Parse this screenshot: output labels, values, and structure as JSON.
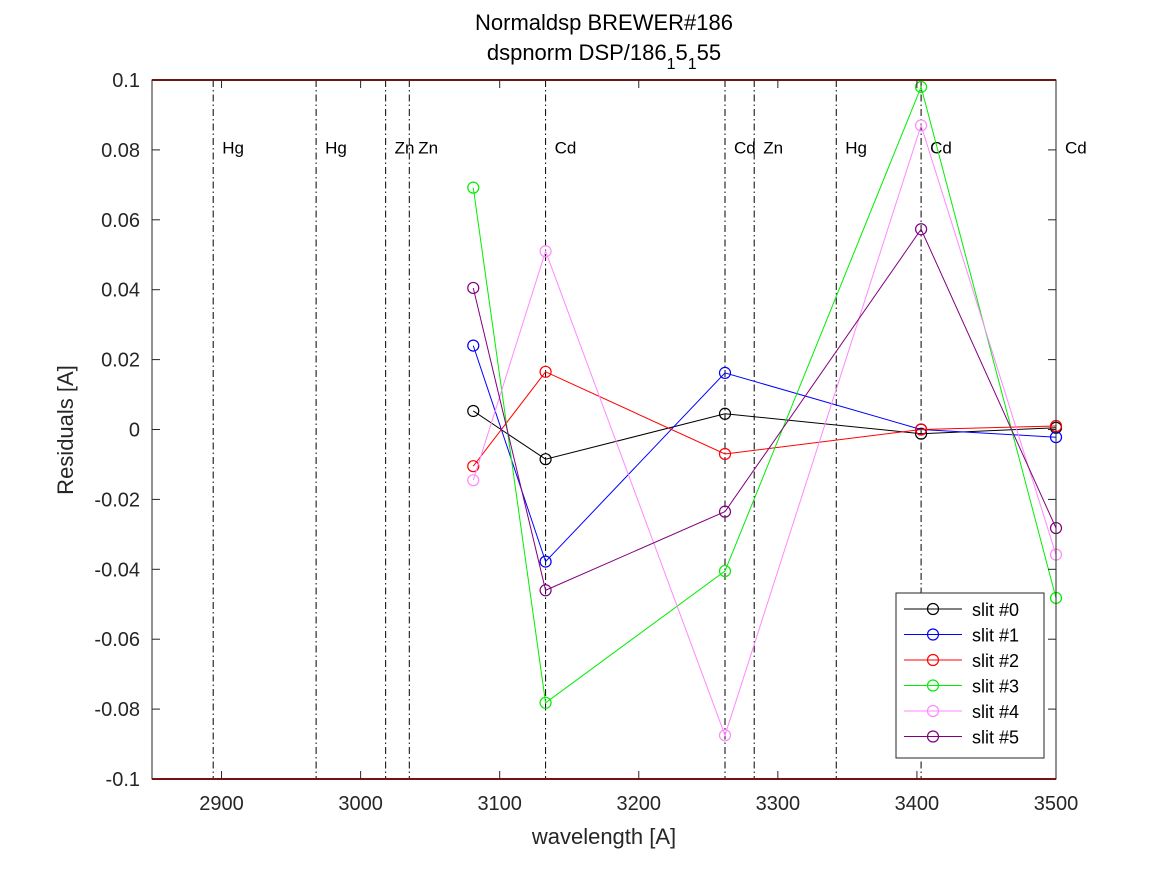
{
  "chart_data": {
    "type": "line",
    "title_line1": "Normaldsp BREWER#186",
    "title_line2": "dspnorm DSP/186",
    "title_sub1": "1",
    "title_mid": "5",
    "title_sub2": "1",
    "title_end": "55",
    "xlabel": "wavelength [A]",
    "ylabel": "Residuals [A]",
    "xlim": [
      2850,
      3500
    ],
    "ylim": [
      -0.1,
      0.1
    ],
    "xticks": [
      2900,
      3000,
      3100,
      3200,
      3300,
      3400,
      3500
    ],
    "xtick_labels": [
      "2900",
      "3000",
      "3100",
      "3200",
      "3300",
      "3400",
      "3500"
    ],
    "yticks": [
      0.1,
      0.08,
      0.06,
      0.04,
      0.02,
      0,
      -0.02,
      -0.04,
      -0.06,
      -0.08,
      -0.1
    ],
    "ytick_labels": [
      "0.1",
      "0.08",
      "0.06",
      "0.04",
      "0.02",
      "0",
      "-0.02",
      "-0.04",
      "-0.06",
      "-0.08",
      "-0.1"
    ],
    "x": [
      3081,
      3133,
      3262,
      3403,
      3500
    ],
    "series": [
      {
        "name": "slit #0",
        "color": "#000000",
        "values": [
          0.0053,
          -0.0085,
          0.0045,
          -0.0012,
          0.0005
        ]
      },
      {
        "name": "slit #1",
        "color": "#0000ff",
        "values": [
          0.024,
          -0.0378,
          0.0162,
          0.0,
          -0.0022
        ]
      },
      {
        "name": "slit #2",
        "color": "#ff0000",
        "values": [
          -0.0105,
          0.0165,
          -0.007,
          0.0,
          0.001
        ]
      },
      {
        "name": "slit #3",
        "color": "#00ee00",
        "values": [
          0.0692,
          -0.0782,
          -0.0405,
          0.098,
          -0.0482
        ]
      },
      {
        "name": "slit #4",
        "color": "#ff88ff",
        "values": [
          -0.0145,
          0.051,
          -0.0875,
          0.087,
          -0.0358
        ]
      },
      {
        "name": "slit #5",
        "color": "#800080",
        "values": [
          0.0405,
          -0.046,
          -0.0235,
          0.0573,
          -0.0282
        ]
      }
    ],
    "reference_lines": [
      {
        "x": 2894,
        "label": "Hg"
      },
      {
        "x": 2968,
        "label": "Hg"
      },
      {
        "x": 3018,
        "label": "Zn"
      },
      {
        "x": 3035,
        "label": "Zn"
      },
      {
        "x": 3133,
        "label": "Cd"
      },
      {
        "x": 3262,
        "label": "Cd"
      },
      {
        "x": 3283,
        "label": "Zn"
      },
      {
        "x": 3342,
        "label": "Hg"
      },
      {
        "x": 3403,
        "label": "Cd"
      },
      {
        "x": 3500,
        "label": "Cd"
      }
    ],
    "ref_label_y": 0.079,
    "legend_location": "bottom-right",
    "limit_line_color": "#c00000"
  }
}
